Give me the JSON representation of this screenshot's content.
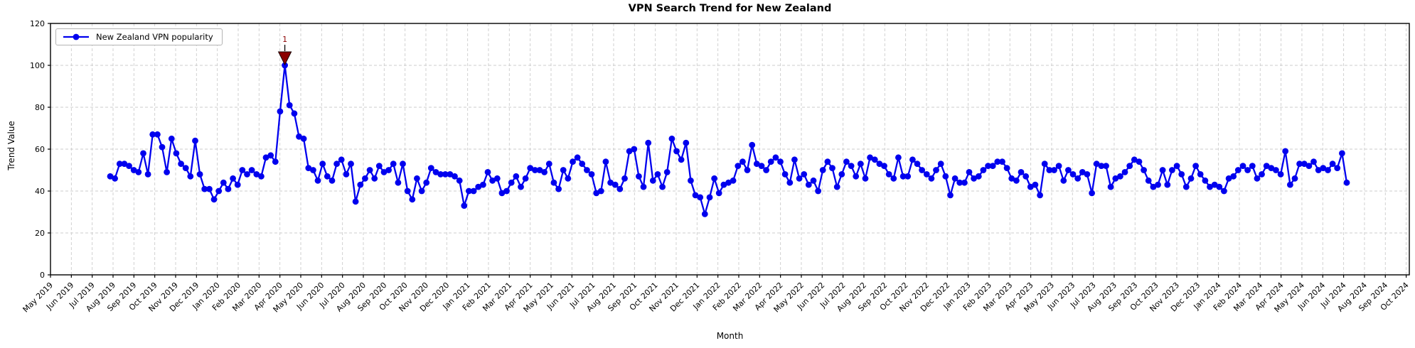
{
  "title": "VPN Search Trend for New Zealand",
  "xlabel": "Month",
  "ylabel": "Trend Value",
  "legend": {
    "label": "New Zealand VPN popularity"
  },
  "annotation": {
    "label": "1",
    "marker": "down-triangle",
    "color": "#8B0000",
    "peak_value": 100,
    "peak_month": "Apr 2020"
  },
  "colors": {
    "line": "#0000EE",
    "marker": "#0000EE",
    "grid": "#cccccc",
    "spine": "#000000",
    "annotation": "#8B0000",
    "background": "#ffffff"
  },
  "y_ticks": [
    0,
    20,
    40,
    60,
    80,
    100,
    120
  ],
  "x_tick_labels": [
    "May 2019",
    "Jun 2019",
    "Jul 2019",
    "Aug 2019",
    "Sep 2019",
    "Oct 2019",
    "Nov 2019",
    "Dec 2019",
    "Jan 2020",
    "Feb 2020",
    "Mar 2020",
    "Apr 2020",
    "May 2020",
    "Jun 2020",
    "Jul 2020",
    "Aug 2020",
    "Sep 2020",
    "Oct 2020",
    "Nov 2020",
    "Dec 2020",
    "Jan 2021",
    "Feb 2021",
    "Mar 2021",
    "Apr 2021",
    "May 2021",
    "Jun 2021",
    "Jul 2021",
    "Aug 2021",
    "Sep 2021",
    "Oct 2021",
    "Nov 2021",
    "Dec 2021",
    "Jan 2022",
    "Feb 2022",
    "Mar 2022",
    "Apr 2022",
    "May 2022",
    "Jun 2022",
    "Jul 2022",
    "Aug 2022",
    "Sep 2022",
    "Oct 2022",
    "Nov 2022",
    "Dec 2022",
    "Jan 2023",
    "Feb 2023",
    "Mar 2023",
    "Apr 2023",
    "May 2023",
    "Jun 2023",
    "Jul 2023",
    "Aug 2023",
    "Sep 2023",
    "Oct 2023",
    "Nov 2023",
    "Dec 2023",
    "Jan 2024",
    "Feb 2024",
    "Mar 2024",
    "Apr 2024",
    "May 2024",
    "Jun 2024",
    "Jul 2024",
    "Aug 2024",
    "Sep 2024",
    "Oct 2024"
  ],
  "chart_data": {
    "type": "line",
    "title": "VPN Search Trend for New Zealand",
    "xlabel": "Month",
    "ylabel": "Trend Value",
    "ylim": [
      0,
      120
    ],
    "x_range": [
      "May 2019",
      "Oct 2024"
    ],
    "grid": true,
    "grid_style": "dashed",
    "legend_position": "upper left",
    "marker": "circle",
    "annotations": [
      {
        "text": "1",
        "value": 100,
        "approx_date": "2020-04-12",
        "color": "#8B0000"
      }
    ],
    "series": [
      {
        "name": "New Zealand VPN popularity",
        "frequency": "weekly",
        "start": "2019-07-28",
        "end": "2024-08-04",
        "values": [
          47,
          46,
          53,
          53,
          52,
          50,
          49,
          58,
          48,
          67,
          67,
          61,
          49,
          65,
          58,
          53,
          51,
          47,
          64,
          48,
          41,
          41,
          36,
          40,
          44,
          41,
          46,
          43,
          50,
          48,
          50,
          48,
          47,
          56,
          57,
          54,
          78,
          100,
          81,
          77,
          66,
          65,
          51,
          50,
          45,
          53,
          47,
          45,
          53,
          55,
          48,
          53,
          35,
          43,
          46,
          50,
          46,
          52,
          49,
          50,
          53,
          44,
          53,
          40,
          36,
          46,
          40,
          44,
          51,
          49,
          48,
          48,
          48,
          47,
          45,
          33,
          40,
          40,
          42,
          43,
          49,
          45,
          46,
          39,
          40,
          44,
          47,
          42,
          46,
          51,
          50,
          50,
          49,
          53,
          44,
          41,
          50,
          46,
          54,
          56,
          53,
          50,
          48,
          39,
          40,
          54,
          44,
          43,
          41,
          46,
          59,
          60,
          47,
          42,
          63,
          45,
          48,
          42,
          49,
          65,
          59,
          55,
          63,
          45,
          38,
          37,
          29,
          37,
          46,
          39,
          43,
          44,
          45,
          52,
          54,
          50,
          62,
          53,
          52,
          50,
          54,
          56,
          54,
          48,
          44,
          55,
          46,
          48,
          43,
          45,
          40,
          50,
          54,
          51,
          42,
          48,
          54,
          52,
          47,
          53,
          46,
          56,
          55,
          53,
          52,
          48,
          46,
          56,
          47,
          47,
          55,
          53,
          50,
          48,
          46,
          50,
          53,
          47,
          38,
          46,
          44,
          44,
          49,
          46,
          47,
          50,
          52,
          52,
          54,
          54,
          51,
          46,
          45,
          49,
          47,
          42,
          43,
          38,
          53,
          50,
          50,
          52,
          45,
          50,
          48,
          46,
          49,
          48,
          39,
          53,
          52,
          52,
          42,
          46,
          47,
          49,
          52,
          55,
          54,
          50,
          45,
          42,
          43,
          50,
          43,
          50,
          52,
          48,
          42,
          46,
          52,
          48,
          45,
          42,
          43,
          42,
          40,
          46,
          47,
          50,
          52,
          50,
          52,
          46,
          48,
          52,
          51,
          50,
          48,
          59,
          43,
          46,
          53,
          53,
          52,
          54,
          50,
          51,
          50,
          53,
          51,
          58,
          44
        ]
      }
    ]
  }
}
